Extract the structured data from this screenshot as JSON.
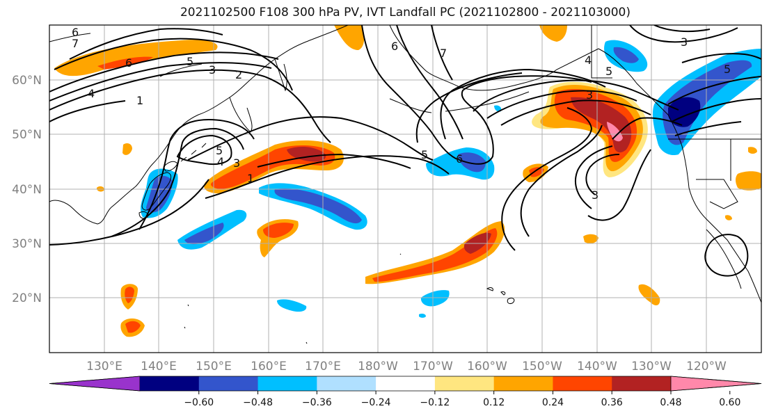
{
  "title": "2021102500 F108 300 hPa PV, IVT Landfall PC (2021102800 - 2021103000)",
  "latitude_labels": [
    "60°N",
    "50°N",
    "40°N",
    "30°N",
    "20°N"
  ],
  "longitude_labels": [
    "130°E",
    "140°E",
    "150°E",
    "160°E",
    "170°E",
    "180°W",
    "170°W",
    "160°W",
    "150°W",
    "140°W",
    "130°W",
    "120°W"
  ],
  "contour_labels": [
    "6",
    "7",
    "5",
    "3",
    "2",
    "1",
    "4",
    "6",
    "5",
    "3",
    "4",
    "1",
    "3",
    "5",
    "6",
    "6",
    "7",
    "5",
    "4",
    "5",
    "3",
    "3"
  ],
  "colorbar": {
    "tick_labels": [
      "−0.60",
      "−0.48",
      "−0.36",
      "−0.24",
      "−0.12",
      "0.12",
      "0.24",
      "0.36",
      "0.48",
      "0.60"
    ],
    "colors": [
      "#9933cc",
      "#000080",
      "#3355cc",
      "#00bfff",
      "#b0e0ff",
      "#ffffff",
      "#ffe680",
      "#ffa500",
      "#ff4500",
      "#b22222",
      "#ff88aa"
    ]
  }
}
